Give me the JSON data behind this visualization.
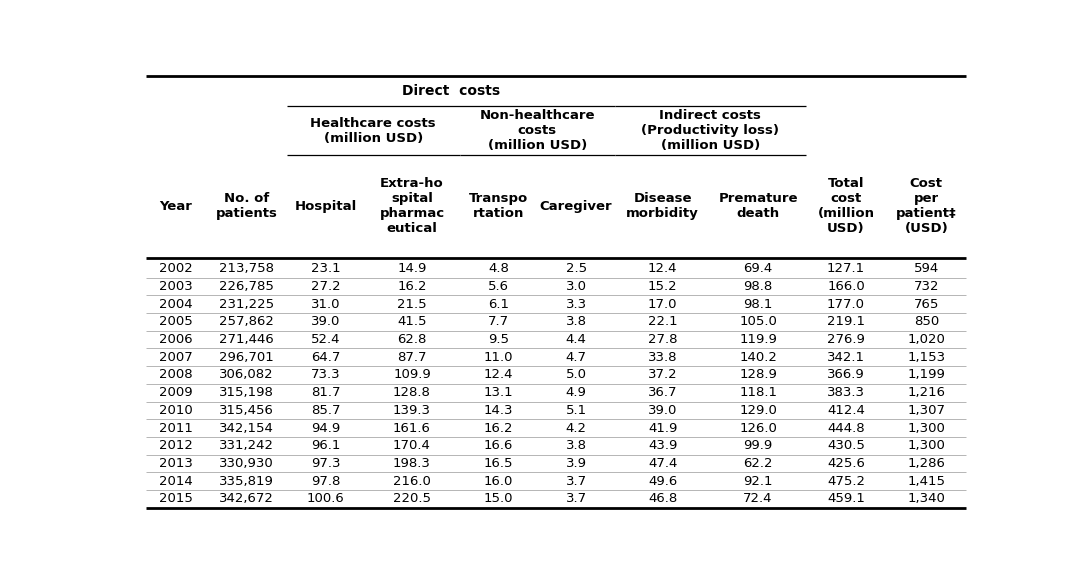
{
  "col_headers": [
    "Year",
    "No. of\npatients",
    "Hospital",
    "Extra-ho\nspital\npharmac\neutical",
    "Transpo\nrtation",
    "Caregiver",
    "Disease\nmorbidity",
    "Premature\ndeath",
    "Total\ncost\n(million\nUSD)",
    "Cost\nper\npatient‡\n(USD)"
  ],
  "data": [
    [
      "2002",
      "213,758",
      "23.1",
      "14.9",
      "4.8",
      "2.5",
      "12.4",
      "69.4",
      "127.1",
      "594"
    ],
    [
      "2003",
      "226,785",
      "27.2",
      "16.2",
      "5.6",
      "3.0",
      "15.2",
      "98.8",
      "166.0",
      "732"
    ],
    [
      "2004",
      "231,225",
      "31.0",
      "21.5",
      "6.1",
      "3.3",
      "17.0",
      "98.1",
      "177.0",
      "765"
    ],
    [
      "2005",
      "257,862",
      "39.0",
      "41.5",
      "7.7",
      "3.8",
      "22.1",
      "105.0",
      "219.1",
      "850"
    ],
    [
      "2006",
      "271,446",
      "52.4",
      "62.8",
      "9.5",
      "4.4",
      "27.8",
      "119.9",
      "276.9",
      "1,020"
    ],
    [
      "2007",
      "296,701",
      "64.7",
      "87.7",
      "11.0",
      "4.7",
      "33.8",
      "140.2",
      "342.1",
      "1,153"
    ],
    [
      "2008",
      "306,082",
      "73.3",
      "109.9",
      "12.4",
      "5.0",
      "37.2",
      "128.9",
      "366.9",
      "1,199"
    ],
    [
      "2009",
      "315,198",
      "81.7",
      "128.8",
      "13.1",
      "4.9",
      "36.7",
      "118.1",
      "383.3",
      "1,216"
    ],
    [
      "2010",
      "315,456",
      "85.7",
      "139.3",
      "14.3",
      "5.1",
      "39.0",
      "129.0",
      "412.4",
      "1,307"
    ],
    [
      "2011",
      "342,154",
      "94.9",
      "161.6",
      "16.2",
      "4.2",
      "41.9",
      "126.0",
      "444.8",
      "1,300"
    ],
    [
      "2012",
      "331,242",
      "96.1",
      "170.4",
      "16.6",
      "3.8",
      "43.9",
      "99.9",
      "430.5",
      "1,300"
    ],
    [
      "2013",
      "330,930",
      "97.3",
      "198.3",
      "16.5",
      "3.9",
      "47.4",
      "62.2",
      "425.6",
      "1,286"
    ],
    [
      "2014",
      "335,819",
      "97.8",
      "216.0",
      "16.0",
      "3.7",
      "49.6",
      "92.1",
      "475.2",
      "1,415"
    ],
    [
      "2015",
      "342,672",
      "100.6",
      "220.5",
      "15.0",
      "3.7",
      "46.8",
      "72.4",
      "459.1",
      "1,340"
    ]
  ],
  "direct_costs_label": "Direct  costs",
  "healthcare_label": "Healthcare costs\n(million USD)",
  "nonhealthcare_label": "Non-healthcare\ncosts\n(million USD)",
  "indirect_label": "Indirect costs\n(Productivity loss)\n(million USD)",
  "total_col_label": "Total\ncost\n(million\nUSD)",
  "cpp_col_label": "Cost\nper\npatient‡\n(USD)",
  "bg_color": "#ffffff",
  "font_size": 9.0,
  "header_font_size": 9.5,
  "bold_font": "Arial Bold",
  "normal_font": "Arial"
}
